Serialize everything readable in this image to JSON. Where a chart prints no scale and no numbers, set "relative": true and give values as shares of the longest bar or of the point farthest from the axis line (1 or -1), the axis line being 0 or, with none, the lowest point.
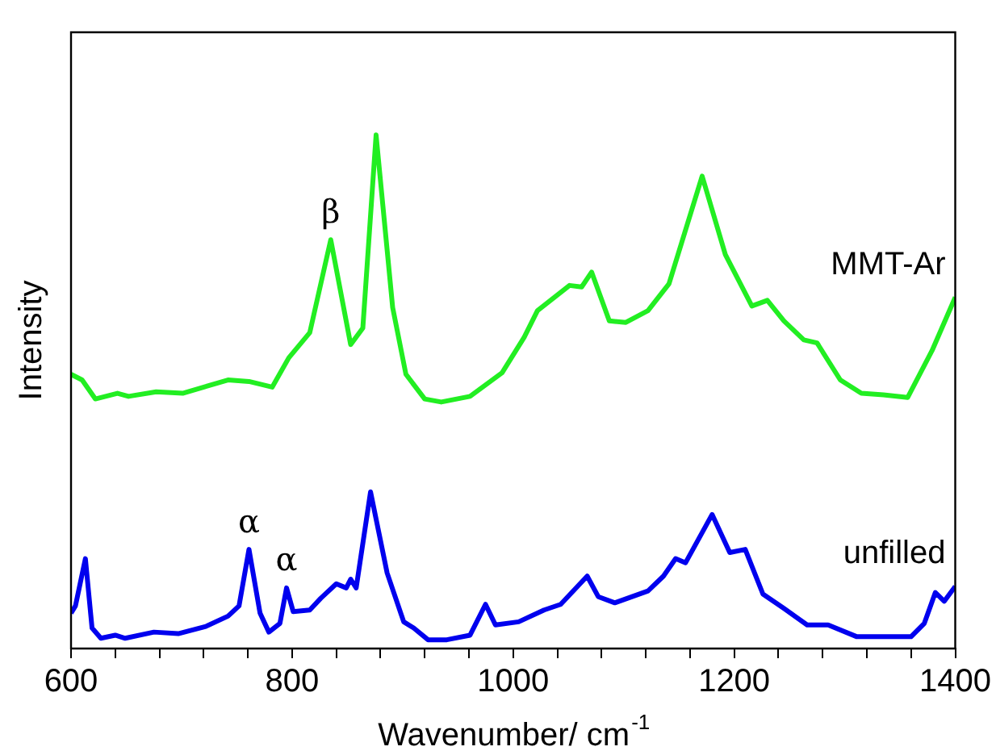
{
  "chart_data": {
    "type": "line",
    "xlabel": "Wavenumber/ cm$^{-1}$",
    "ylabel": "Intensity",
    "relative": true,
    "xlim": [
      600,
      1400
    ],
    "xticks": [
      600,
      {
        "value": 640,
        "label": null
      },
      {
        "value": 680,
        "label": null
      },
      {
        "value": 720,
        "label": null
      },
      {
        "value": 760,
        "label": null
      },
      800,
      {
        "value": 840,
        "label": null
      },
      {
        "value": 880,
        "label": null
      },
      {
        "value": 920,
        "label": null
      },
      {
        "value": 960,
        "label": null
      },
      1000,
      {
        "value": 1040,
        "label": null
      },
      {
        "value": 1080,
        "label": null
      },
      {
        "value": 1120,
        "label": null
      },
      {
        "value": 1160,
        "label": null
      },
      1200,
      {
        "value": 1240,
        "label": null
      },
      {
        "value": 1280,
        "label": null
      },
      {
        "value": 1320,
        "label": null
      },
      {
        "value": 1360,
        "label": null
      },
      1400
    ],
    "tick_labels": "x",
    "grid": false,
    "legend": false,
    "marker": "none",
    "line_style": "solid",
    "series": [
      {
        "name": "MMT-Ar",
        "color": "#22ee22",
        "x": [
          600,
          610,
          622,
          642,
          652,
          677,
          701,
          742,
          761,
          782,
          797,
          816,
          835,
          853,
          864,
          876,
          891,
          903,
          920,
          935,
          961,
          990,
          1010,
          1022,
          1051,
          1062,
          1071,
          1087,
          1102,
          1122,
          1141,
          1171,
          1192,
          1216,
          1230,
          1245,
          1263,
          1275,
          1296,
          1315,
          1335,
          1357,
          1379,
          1400
        ],
        "values": [
          0.534,
          0.523,
          0.486,
          0.497,
          0.491,
          0.5,
          0.497,
          0.523,
          0.52,
          0.509,
          0.566,
          0.615,
          0.796,
          0.592,
          0.624,
          1.0,
          0.664,
          0.534,
          0.486,
          0.48,
          0.491,
          0.537,
          0.606,
          0.658,
          0.707,
          0.704,
          0.733,
          0.638,
          0.635,
          0.658,
          0.71,
          0.92,
          0.767,
          0.667,
          0.678,
          0.638,
          0.601,
          0.595,
          0.523,
          0.497,
          0.494,
          0.489,
          0.58,
          0.684
        ]
      },
      {
        "name": "unfilled",
        "color": "#0000ee",
        "x": [
          600,
          604,
          613,
          619,
          627,
          640,
          649,
          675,
          697,
          722,
          742,
          752,
          761,
          771,
          779,
          789,
          795,
          801,
          816,
          826,
          840,
          849,
          853,
          858,
          871,
          886,
          901,
          910,
          923,
          940,
          961,
          975,
          984,
          1005,
          1028,
          1043,
          1067,
          1077,
          1092,
          1122,
          1136,
          1147,
          1156,
          1180,
          1196,
          1210,
          1226,
          1245,
          1266,
          1285,
          1311,
          1360,
          1372,
          1382,
          1390,
          1400
        ],
        "values": [
          0.069,
          0.083,
          0.175,
          0.04,
          0.02,
          0.026,
          0.02,
          0.032,
          0.029,
          0.043,
          0.063,
          0.083,
          0.193,
          0.069,
          0.032,
          0.049,
          0.118,
          0.072,
          0.075,
          0.098,
          0.126,
          0.118,
          0.135,
          0.118,
          0.305,
          0.147,
          0.052,
          0.04,
          0.017,
          0.017,
          0.026,
          0.086,
          0.046,
          0.052,
          0.075,
          0.086,
          0.141,
          0.101,
          0.089,
          0.112,
          0.141,
          0.175,
          0.167,
          0.261,
          0.187,
          0.193,
          0.106,
          0.078,
          0.046,
          0.046,
          0.023,
          0.023,
          0.049,
          0.109,
          0.092,
          0.121
        ]
      }
    ],
    "annotations": [
      {
        "text": "α",
        "x": 761,
        "y": 0.193
      },
      {
        "text": "α",
        "x": 795,
        "y": 0.118
      },
      {
        "text": "β",
        "x": 835,
        "y": 0.796
      }
    ]
  }
}
